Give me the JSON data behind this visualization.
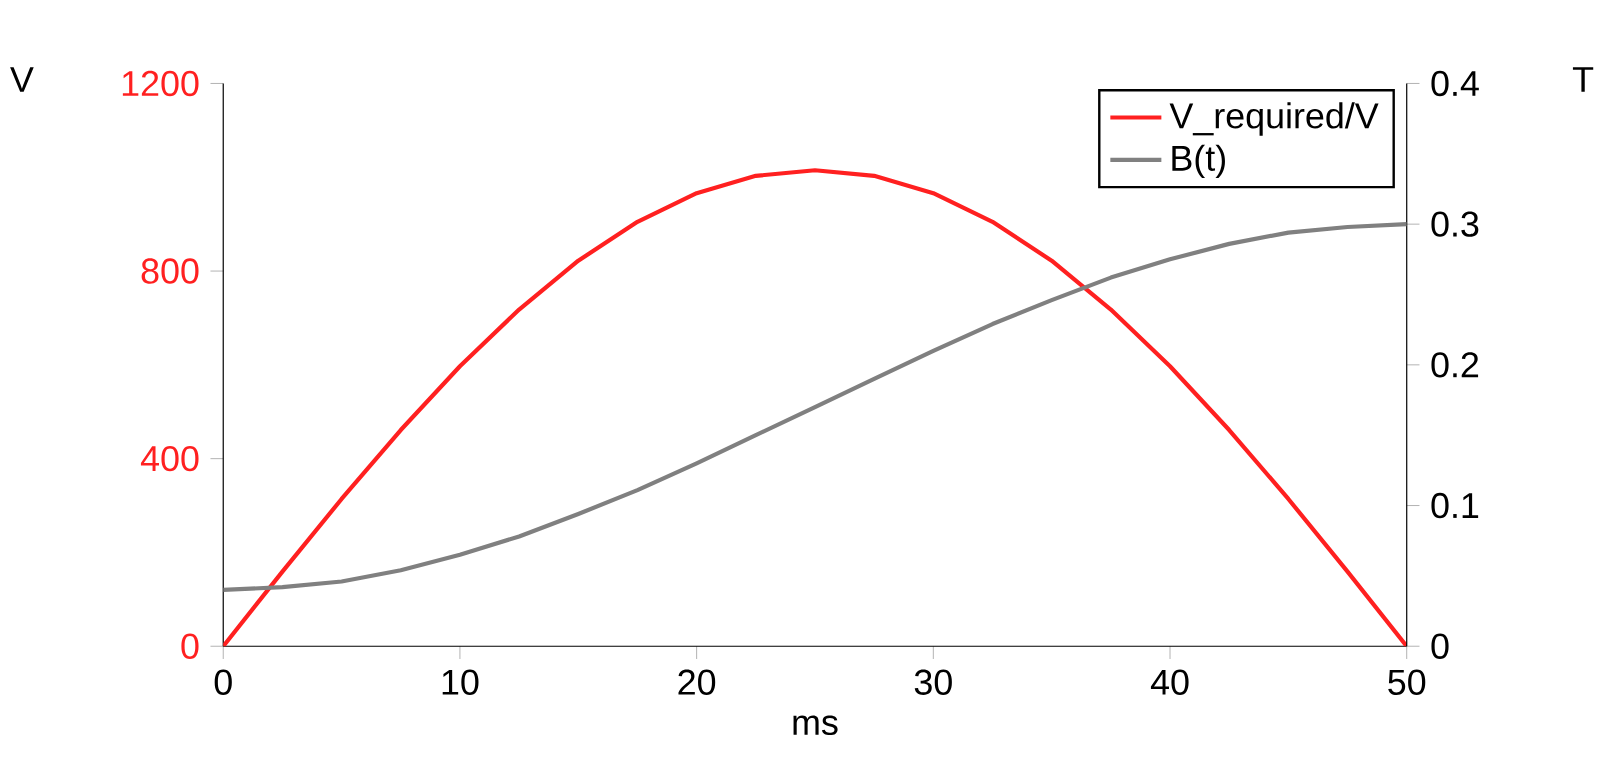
{
  "chart_data": {
    "type": "line",
    "xlabel": "ms",
    "ylabel": "V",
    "y2label": "T",
    "x": [
      0,
      2.5,
      5,
      7.5,
      10,
      12.5,
      15,
      17.5,
      20,
      22.5,
      25,
      27.5,
      30,
      32.5,
      35,
      37.5,
      40,
      42.5,
      45,
      47.5,
      50
    ],
    "series": [
      {
        "name": "V_required/V",
        "color": "#ff2020",
        "values": [
          0,
          159,
          314,
          461,
          597,
          718,
          822,
          905,
          966,
          1003,
          1015,
          1003,
          966,
          905,
          822,
          718,
          597,
          461,
          314,
          159,
          0
        ]
      },
      {
        "name": "B(t)",
        "color": "#808080",
        "axis": "y2",
        "values": [
          0.04,
          0.042,
          0.046,
          0.054,
          0.065,
          0.078,
          0.094,
          0.111,
          0.13,
          0.15,
          0.17,
          0.19,
          0.21,
          0.229,
          0.246,
          0.262,
          0.275,
          0.286,
          0.294,
          0.298,
          0.3
        ]
      }
    ],
    "xlim": [
      0,
      50
    ],
    "xticks": [
      0,
      10,
      20,
      30,
      40,
      50
    ],
    "ylim": [
      0,
      1200
    ],
    "yticks": [
      0,
      400,
      800,
      1200
    ],
    "y2lim": [
      0,
      0.4
    ],
    "y2ticks": [
      0,
      0.1,
      0.2,
      0.3,
      0.4
    ],
    "legend": "top right",
    "marker": "none",
    "line_style": "solid",
    "grid": false
  }
}
